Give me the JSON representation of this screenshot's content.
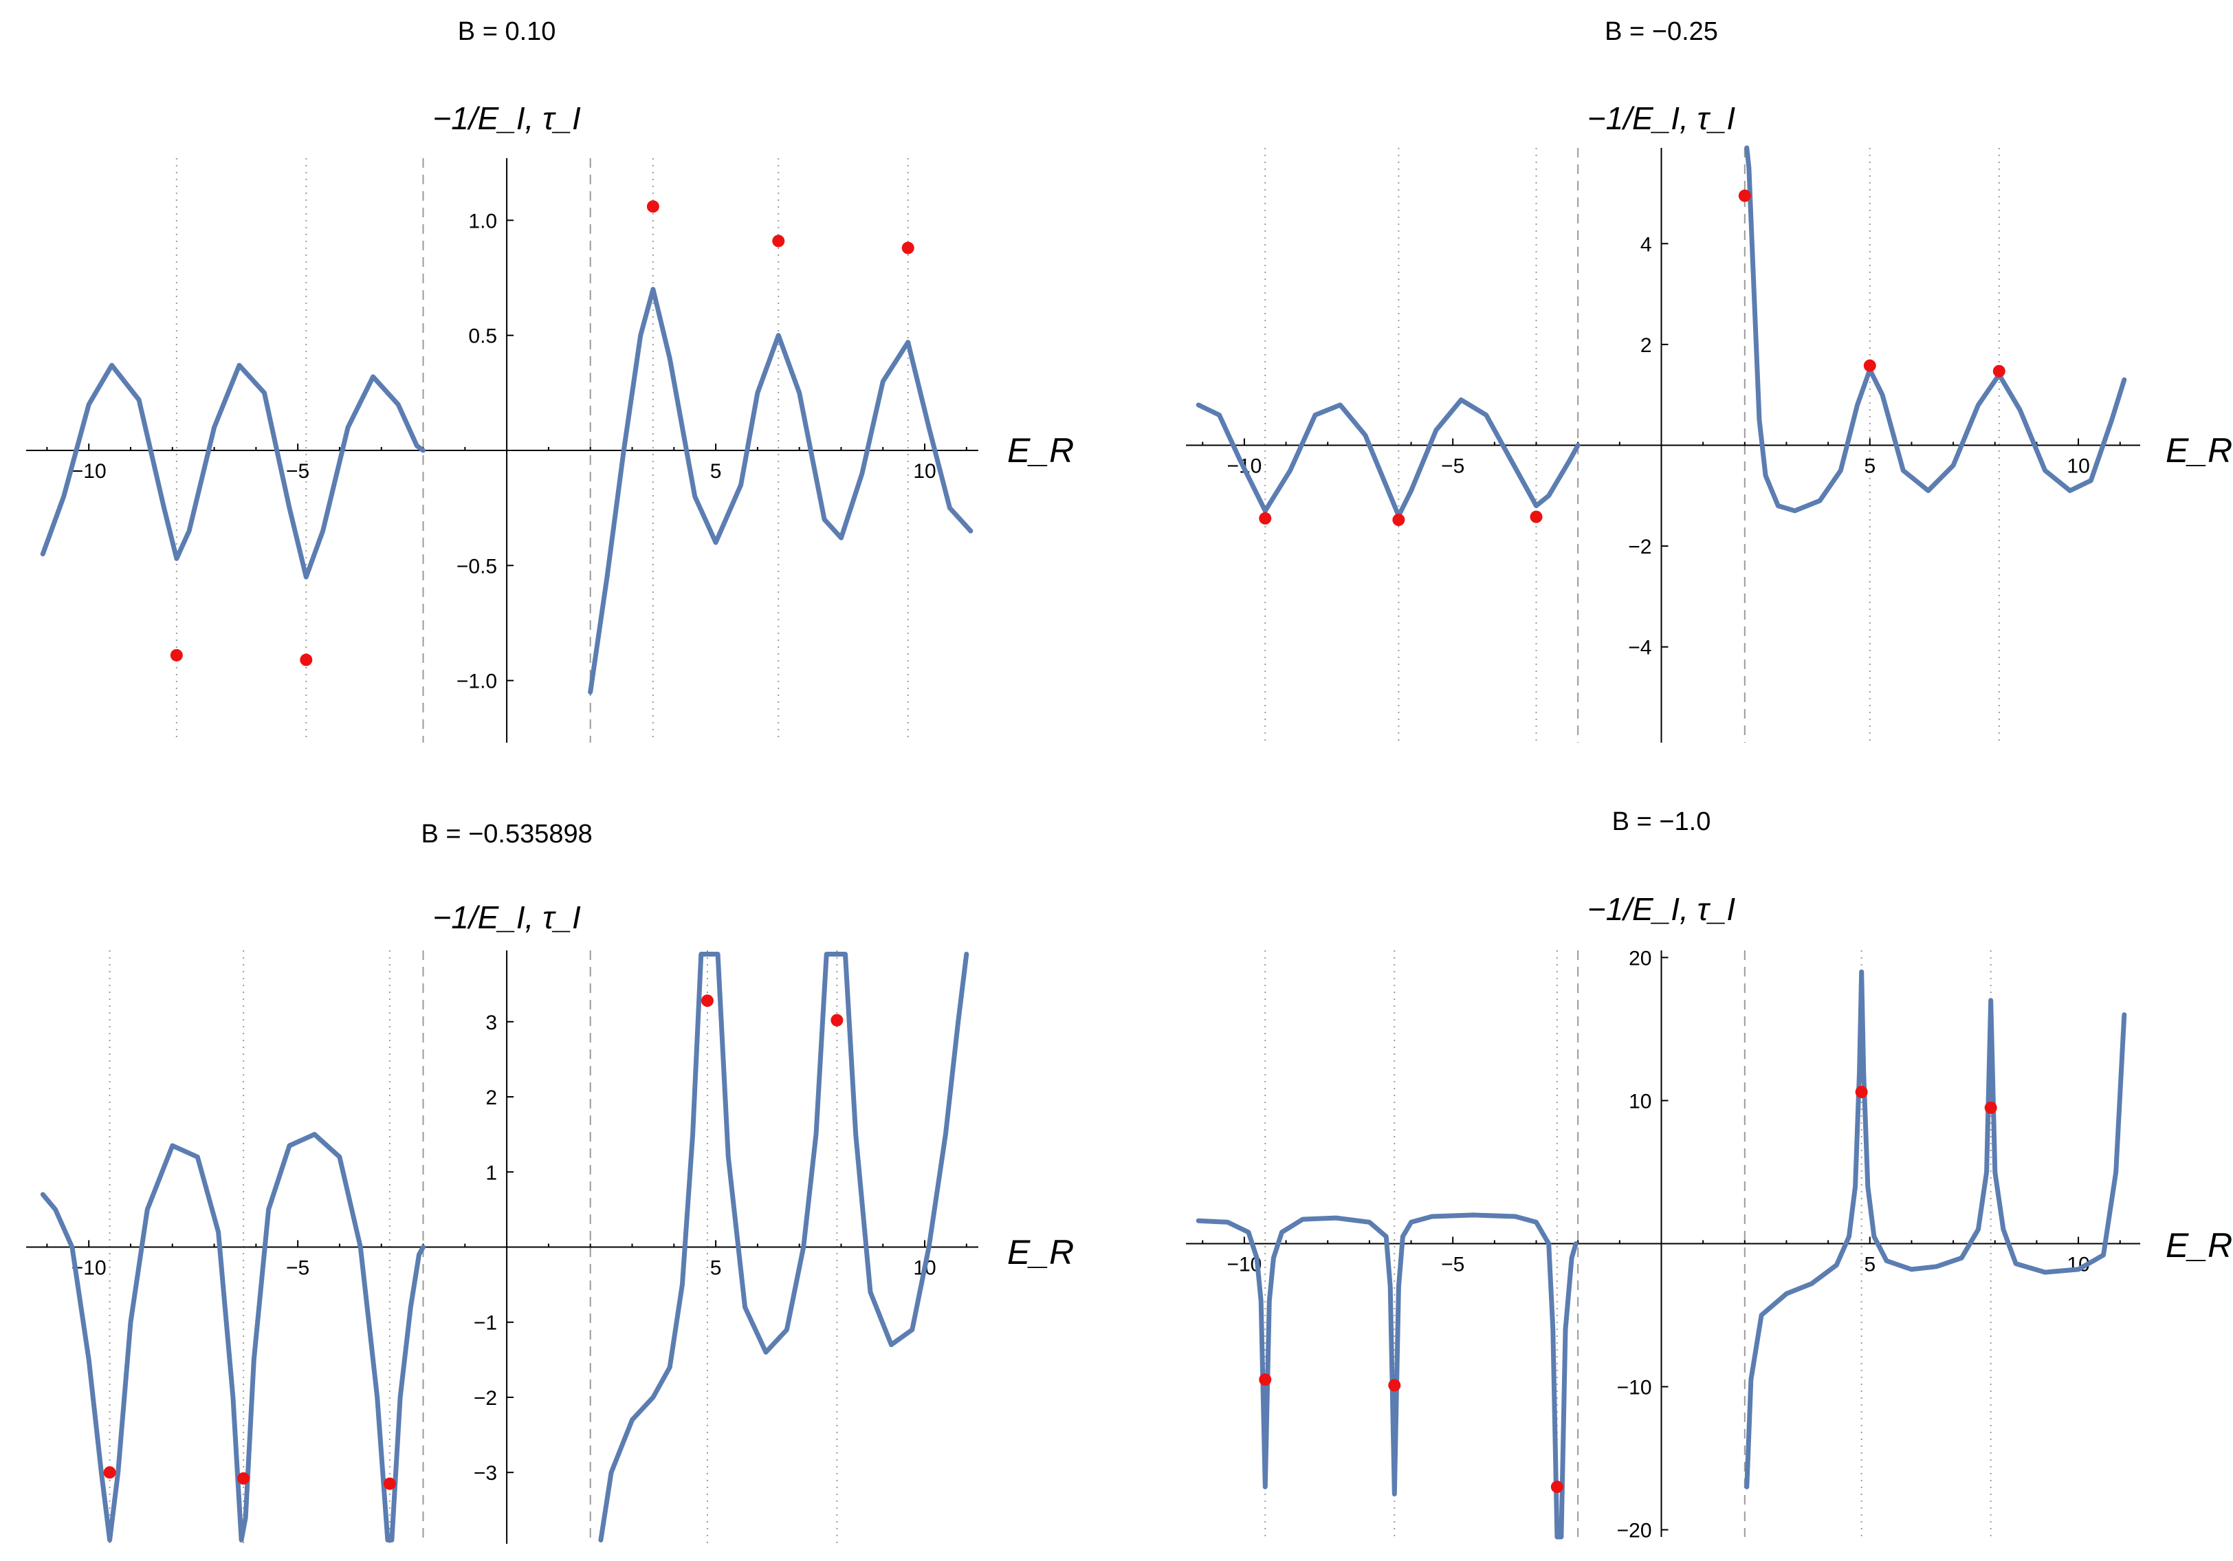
{
  "chart_data": [
    {
      "type": "line",
      "title": "B = 0.10",
      "xlabel": "E_R",
      "ylabel": "−1/E_I,  τ_I",
      "xlim": [
        -11.5,
        11.2
      ],
      "ylim": [
        -1.27,
        1.27
      ],
      "xticks": [
        -10,
        -5,
        5,
        10
      ],
      "xtick_labels": [
        "−10",
        "−5",
        "5",
        "10"
      ],
      "yticks": [
        1.0,
        0.5,
        -0.5,
        -1.0
      ],
      "ytick_labels": [
        "1.0",
        "0.5",
        "−0.5",
        "−1.0"
      ],
      "dashed_lines": [
        -2.0,
        2.0
      ],
      "dotted_lines": [
        -7.9,
        -4.8,
        3.5,
        6.5,
        9.6
      ],
      "series": [
        {
          "x": [
            -11.1,
            -10.6,
            -10.0,
            -9.45,
            -8.8,
            -8.2,
            -7.9,
            -7.6,
            -7.0,
            -6.4,
            -5.8,
            -5.2,
            -4.8,
            -4.4,
            -3.8,
            -3.2,
            -2.6,
            -2.15,
            -2.0
          ],
          "y": [
            -0.45,
            -0.2,
            0.2,
            0.37,
            0.22,
            -0.25,
            -0.47,
            -0.35,
            0.1,
            0.37,
            0.25,
            -0.25,
            -0.55,
            -0.35,
            0.1,
            0.32,
            0.2,
            0.02,
            0.0
          ]
        },
        {
          "x": [
            2.0,
            2.4,
            2.8,
            3.2,
            3.5,
            3.9,
            4.5,
            5.0,
            5.6,
            6.0,
            6.5,
            7.0,
            7.6,
            8.0,
            8.5,
            9.0,
            9.6,
            10.1,
            10.6,
            11.1
          ],
          "y": [
            -1.05,
            -0.55,
            0.0,
            0.5,
            0.7,
            0.4,
            -0.2,
            -0.4,
            -0.15,
            0.25,
            0.5,
            0.25,
            -0.3,
            -0.38,
            -0.1,
            0.3,
            0.47,
            0.1,
            -0.25,
            -0.35
          ]
        }
      ],
      "points": [
        {
          "x": -7.9,
          "y": -0.89
        },
        {
          "x": -4.8,
          "y": -0.91
        },
        {
          "x": 3.5,
          "y": 1.06
        },
        {
          "x": 6.5,
          "y": 0.91
        },
        {
          "x": 9.6,
          "y": 0.88
        }
      ]
    },
    {
      "type": "line",
      "title": "B = −0.25",
      "xlabel": "E_R",
      "ylabel": "−1/E_I,  τ_I",
      "xlim": [
        -11.4,
        11.4
      ],
      "ylim": [
        -5.9,
        5.9
      ],
      "xticks": [
        -10,
        -5,
        5,
        10
      ],
      "xtick_labels": [
        "−10",
        "−5",
        "5",
        "10"
      ],
      "yticks": [
        4,
        2,
        -2,
        -4
      ],
      "ytick_labels": [
        "4",
        "2",
        "−2",
        "−4"
      ],
      "dashed_lines": [
        -2.0,
        2.0
      ],
      "dotted_lines": [
        -9.5,
        -6.3,
        -3.0,
        5.0,
        8.1
      ],
      "series": [
        {
          "x": [
            -11.1,
            -10.6,
            -10.1,
            -9.5,
            -8.9,
            -8.3,
            -7.7,
            -7.1,
            -6.6,
            -6.3,
            -6.0,
            -5.4,
            -4.8,
            -4.2,
            -3.6,
            -3.2,
            -3.0,
            -2.7,
            -2.2,
            -2.0
          ],
          "y": [
            0.8,
            0.6,
            -0.3,
            -1.3,
            -0.5,
            0.6,
            0.8,
            0.2,
            -0.8,
            -1.4,
            -0.9,
            0.3,
            0.9,
            0.6,
            -0.3,
            -0.9,
            -1.2,
            -1.0,
            -0.3,
            0.0
          ]
        },
        {
          "x": [
            2.05,
            2.1,
            2.2,
            2.35,
            2.5,
            2.8,
            3.2,
            3.8,
            4.3,
            4.7,
            5.0,
            5.3,
            5.8,
            6.4,
            7.0,
            7.6,
            8.1,
            8.6,
            9.2,
            9.8,
            10.3,
            10.8,
            11.1
          ],
          "y": [
            5.9,
            5.5,
            3.5,
            0.5,
            -0.6,
            -1.2,
            -1.3,
            -1.1,
            -0.5,
            0.8,
            1.5,
            1.0,
            -0.5,
            -0.9,
            -0.4,
            0.8,
            1.4,
            0.7,
            -0.5,
            -0.9,
            -0.7,
            0.5,
            1.3
          ]
        }
      ],
      "points": [
        {
          "x": -9.5,
          "y": -1.45
        },
        {
          "x": -6.3,
          "y": -1.48
        },
        {
          "x": -3.0,
          "y": -1.42
        },
        {
          "x": 2.0,
          "y": 4.95
        },
        {
          "x": 5.0,
          "y": 1.58
        },
        {
          "x": 8.1,
          "y": 1.47
        }
      ]
    },
    {
      "type": "line",
      "title": "B = −0.535898",
      "xlabel": "E_R",
      "ylabel": "−1/E_I,  τ_I",
      "xlim": [
        -11.5,
        11.2
      ],
      "ylim": [
        -3.95,
        3.95
      ],
      "xticks": [
        -10,
        -5,
        5,
        10
      ],
      "xtick_labels": [
        "−10",
        "−5",
        "5",
        "10"
      ],
      "yticks": [
        3,
        2,
        1,
        -1,
        -2,
        -3
      ],
      "ytick_labels": [
        "3",
        "2",
        "1",
        "−1",
        "−2",
        "−3"
      ],
      "dashed_lines": [
        -2.0,
        2.0
      ],
      "dotted_lines": [
        -9.5,
        -6.3,
        -2.8,
        4.8,
        7.9
      ],
      "series": [
        {
          "x": [
            -11.1,
            -10.8,
            -10.4,
            -10.0,
            -9.7,
            -9.5,
            -9.3,
            -9.0,
            -8.6,
            -8.0,
            -7.4,
            -6.9,
            -6.55,
            -6.35,
            -6.25,
            -6.05,
            -5.7,
            -5.2,
            -4.6,
            -4.0,
            -3.5,
            -3.1,
            -2.85,
            -2.75,
            -2.55,
            -2.3,
            -2.1,
            -2.0
          ],
          "y": [
            0.7,
            0.5,
            0.0,
            -1.5,
            -3.0,
            -3.9,
            -3.0,
            -1.0,
            0.5,
            1.35,
            1.2,
            0.2,
            -2.0,
            -3.9,
            -3.6,
            -1.5,
            0.5,
            1.35,
            1.5,
            1.2,
            0.0,
            -2.0,
            -3.9,
            -3.9,
            -2.0,
            -0.8,
            -0.1,
            0.0
          ]
        },
        {
          "x": [
            2.25,
            2.5,
            3.0,
            3.5,
            3.9,
            4.2,
            4.45,
            4.65,
            4.85,
            5.05,
            5.3,
            5.7,
            6.2,
            6.7,
            7.1,
            7.4,
            7.65,
            7.9,
            8.1,
            8.35,
            8.7,
            9.2,
            9.7,
            10.1,
            10.5,
            10.8,
            11.0
          ],
          "y": [
            -3.9,
            -3.0,
            -2.3,
            -2.0,
            -1.6,
            -0.5,
            1.5,
            3.9,
            3.9,
            3.9,
            1.2,
            -0.8,
            -1.4,
            -1.1,
            0.0,
            1.5,
            3.9,
            3.9,
            3.9,
            1.5,
            -0.6,
            -1.3,
            -1.1,
            0.0,
            1.5,
            3.0,
            3.9
          ]
        }
      ],
      "points": [
        {
          "x": -9.5,
          "y": -3.0
        },
        {
          "x": -6.3,
          "y": -3.08
        },
        {
          "x": -2.8,
          "y": -3.15
        },
        {
          "x": 4.8,
          "y": 3.28
        },
        {
          "x": 7.9,
          "y": 3.02
        }
      ]
    },
    {
      "type": "line",
      "title": "B = −1.0",
      "xlabel": "E_R",
      "ylabel": "−1/E_I,  τ_I",
      "xlim": [
        -11.4,
        11.4
      ],
      "ylim": [
        -20.5,
        20.5
      ],
      "xticks": [
        -10,
        -5,
        5,
        10
      ],
      "xtick_labels": [
        "−10",
        "−5",
        "5",
        "10"
      ],
      "yticks": [
        20,
        10,
        -10,
        -20
      ],
      "ytick_labels": [
        "20",
        "10",
        "−10",
        "−20"
      ],
      "dashed_lines": [
        -2.0,
        2.0
      ],
      "dotted_lines": [
        -9.5,
        -6.4,
        -2.5,
        4.8,
        7.9
      ],
      "series": [
        {
          "x": [
            -11.1,
            -10.4,
            -9.9,
            -9.7,
            -9.6,
            -9.5,
            -9.4,
            -9.3,
            -9.1,
            -8.6,
            -7.8,
            -7.0,
            -6.6,
            -6.5,
            -6.4,
            -6.3,
            -6.2,
            -6.0,
            -5.5,
            -4.5,
            -3.5,
            -3.0,
            -2.7,
            -2.6,
            -2.5,
            -2.4,
            -2.3,
            -2.15,
            -2.05
          ],
          "y": [
            1.6,
            1.5,
            0.8,
            -1.0,
            -4.0,
            -17.0,
            -4.0,
            -1.0,
            0.8,
            1.7,
            1.8,
            1.5,
            0.5,
            -3.0,
            -17.5,
            -3.0,
            0.5,
            1.5,
            1.9,
            2.0,
            1.9,
            1.5,
            0.0,
            -6.0,
            -20.5,
            -20.5,
            -6.0,
            -1.0,
            0.0
          ]
        },
        {
          "x": [
            2.05,
            2.15,
            2.4,
            3.0,
            3.6,
            4.2,
            4.5,
            4.65,
            4.75,
            4.8,
            4.85,
            4.95,
            5.1,
            5.4,
            6.0,
            6.6,
            7.2,
            7.6,
            7.8,
            7.9,
            8.0,
            8.2,
            8.5,
            9.2,
            10.0,
            10.6,
            10.9,
            11.1
          ],
          "y": [
            -17.0,
            -9.5,
            -5.0,
            -3.5,
            -2.8,
            -1.5,
            0.5,
            4.0,
            12.0,
            19.0,
            12.0,
            4.0,
            0.5,
            -1.2,
            -1.8,
            -1.6,
            -1.0,
            1.0,
            5.0,
            17.0,
            5.0,
            1.0,
            -1.4,
            -2.0,
            -1.8,
            -0.8,
            5.0,
            16.0
          ]
        }
      ],
      "points": [
        {
          "x": -9.5,
          "y": -9.5
        },
        {
          "x": -6.4,
          "y": -9.9
        },
        {
          "x": -2.5,
          "y": -17.0
        },
        {
          "x": 4.8,
          "y": 10.6
        },
        {
          "x": 7.9,
          "y": 9.5
        }
      ]
    }
  ]
}
